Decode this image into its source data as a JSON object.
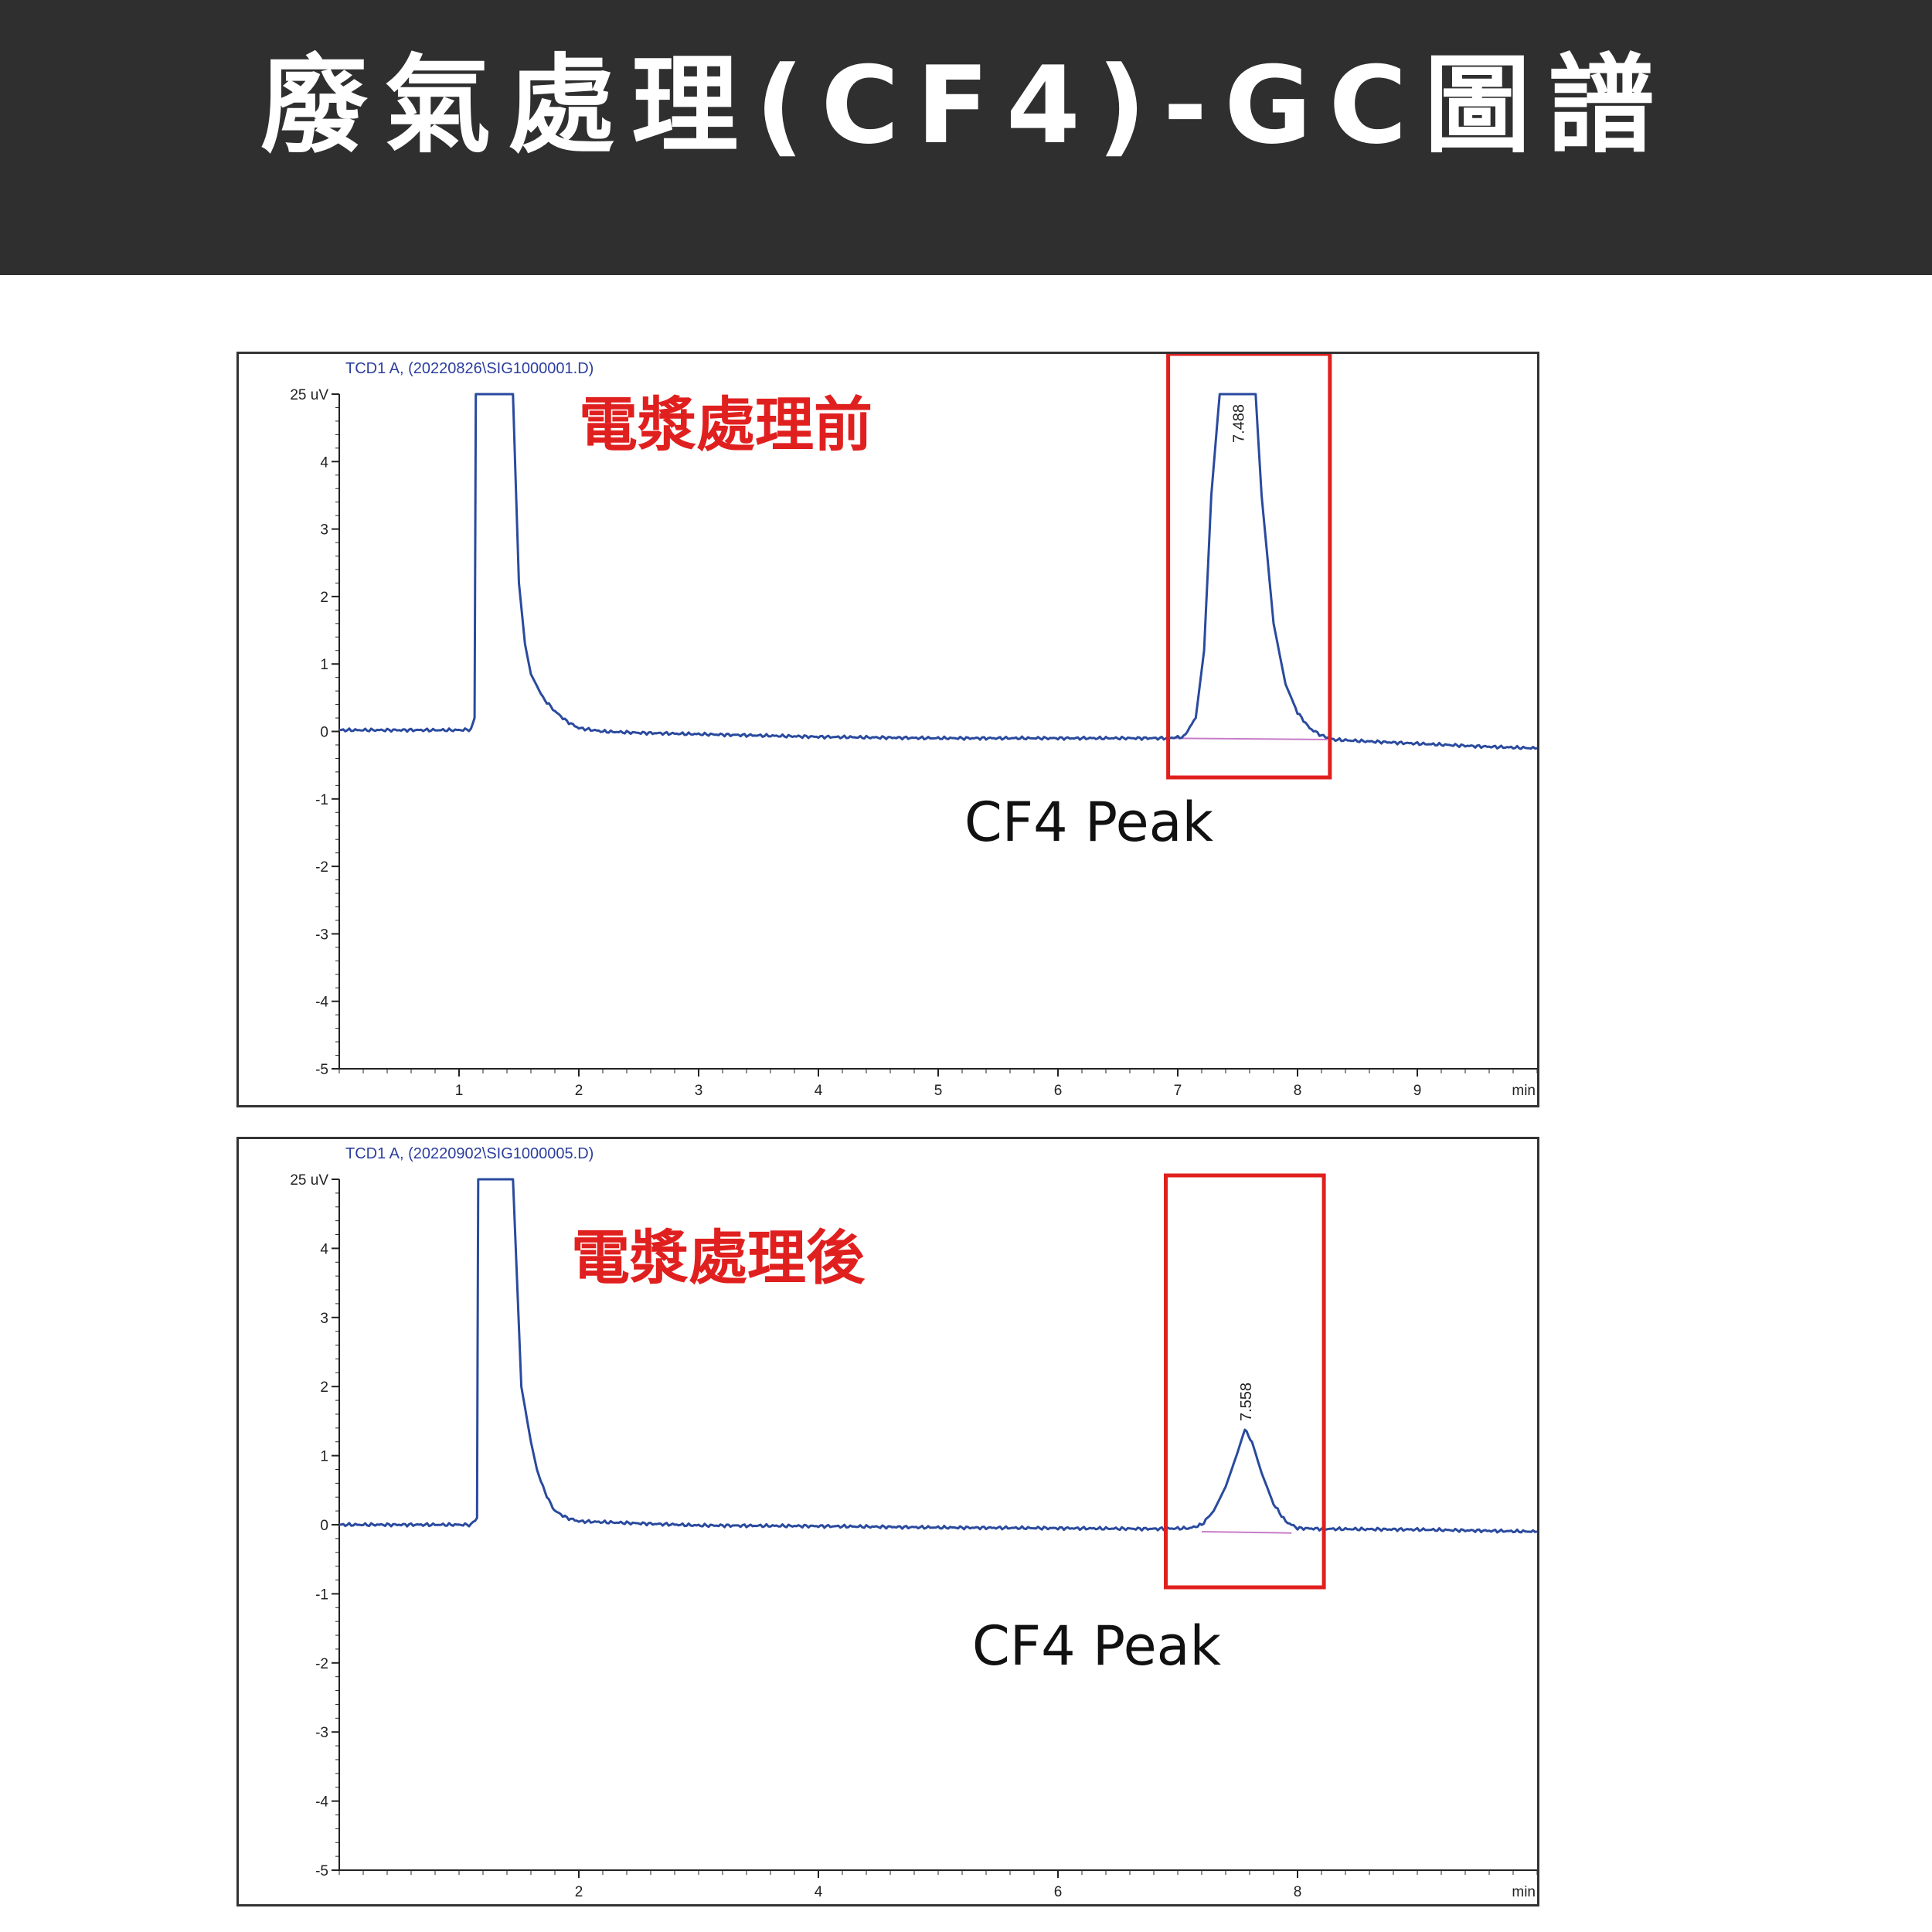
{
  "page": {
    "title": "廢氣處理(CF4)-GC圖譜"
  },
  "chart_data": [
    {
      "type": "line",
      "signal_label": "TCD1 A,  (20220826\\SIG1000001.D)",
      "stage_label": "電漿處理前",
      "annotation": "CF4 Peak",
      "peak_rt_label": "7.488",
      "x_unit": "min",
      "y_unit": "25 uV",
      "xlim": [
        0.0,
        10.0
      ],
      "ylim": [
        -5,
        5
      ],
      "x_ticks": [
        "1",
        "2",
        "3",
        "4",
        "5",
        "6",
        "7",
        "8",
        "9"
      ],
      "y_ticks": [
        "25 uV",
        "4",
        "3",
        "2",
        "1",
        "0",
        "-1",
        "-2",
        "-3",
        "-4",
        "-5"
      ],
      "highlight_x_range": [
        6.92,
        8.27
      ],
      "baseline_range": [
        6.92,
        8.25
      ],
      "series": [
        {
          "x": [
            0.0,
            1.0,
            1.1,
            1.13,
            1.14,
            1.3,
            1.45,
            1.5,
            1.55,
            1.6,
            1.7,
            1.8,
            1.9,
            2.0,
            2.2,
            2.5,
            3.0,
            3.5,
            4.0,
            4.5,
            5.0,
            5.5,
            6.0,
            6.5,
            6.9,
            7.05,
            7.15,
            7.22,
            7.28,
            7.35,
            7.45,
            7.55,
            7.6,
            7.65,
            7.7,
            7.8,
            7.9,
            8.0,
            8.1,
            8.2,
            8.3,
            8.5,
            9.0,
            9.5,
            10.0
          ],
          "y": [
            0.02,
            0.02,
            0.03,
            0.2,
            5.0,
            5.0,
            5.0,
            2.2,
            1.3,
            0.85,
            0.5,
            0.3,
            0.15,
            0.05,
            0.0,
            -0.02,
            -0.04,
            -0.06,
            -0.08,
            -0.09,
            -0.1,
            -0.1,
            -0.1,
            -0.1,
            -0.1,
            -0.08,
            0.2,
            1.2,
            3.5,
            5.0,
            5.0,
            5.0,
            5.0,
            5.0,
            3.5,
            1.6,
            0.7,
            0.28,
            0.05,
            -0.06,
            -0.12,
            -0.14,
            -0.18,
            -0.22,
            -0.25
          ]
        }
      ]
    },
    {
      "type": "line",
      "signal_label": "TCD1 A,  (20220902\\SIG1000005.D)",
      "stage_label": "電漿處理後",
      "annotation": "CF4 Peak",
      "peak_rt_label": "7.558",
      "x_unit": "min",
      "y_unit": "25 uV",
      "xlim": [
        0.0,
        10.0
      ],
      "ylim": [
        -5,
        5
      ],
      "x_ticks": [
        "2",
        "4",
        "6",
        "8"
      ],
      "y_ticks": [
        "25 uV",
        "4",
        "3",
        "2",
        "1",
        "0",
        "-1",
        "-2",
        "-3",
        "-4",
        "-5"
      ],
      "highlight_x_range": [
        6.9,
        8.22
      ],
      "baseline_range": [
        7.2,
        7.95
      ],
      "series": [
        {
          "x": [
            0.0,
            1.0,
            1.1,
            1.15,
            1.16,
            1.3,
            1.45,
            1.52,
            1.6,
            1.65,
            1.7,
            1.75,
            1.8,
            1.9,
            2.0,
            2.5,
            3.0,
            4.0,
            5.0,
            6.0,
            6.8,
            7.1,
            7.2,
            7.3,
            7.4,
            7.5,
            7.56,
            7.62,
            7.7,
            7.8,
            7.9,
            8.0,
            8.2,
            9.0,
            10.0
          ],
          "y": [
            0.0,
            0.0,
            0.0,
            0.1,
            5.0,
            5.0,
            5.0,
            2.0,
            1.2,
            0.8,
            0.55,
            0.35,
            0.2,
            0.1,
            0.05,
            0.02,
            -0.01,
            -0.02,
            -0.04,
            -0.05,
            -0.06,
            -0.05,
            0.0,
            0.2,
            0.55,
            1.05,
            1.38,
            1.2,
            0.75,
            0.3,
            0.05,
            -0.05,
            -0.06,
            -0.07,
            -0.1
          ]
        }
      ]
    }
  ],
  "colors": {
    "header_bg": "#2f2f2f",
    "trace": "#2a4a9e",
    "baseline": "#c77dc7",
    "highlight_box": "#e0201f"
  }
}
